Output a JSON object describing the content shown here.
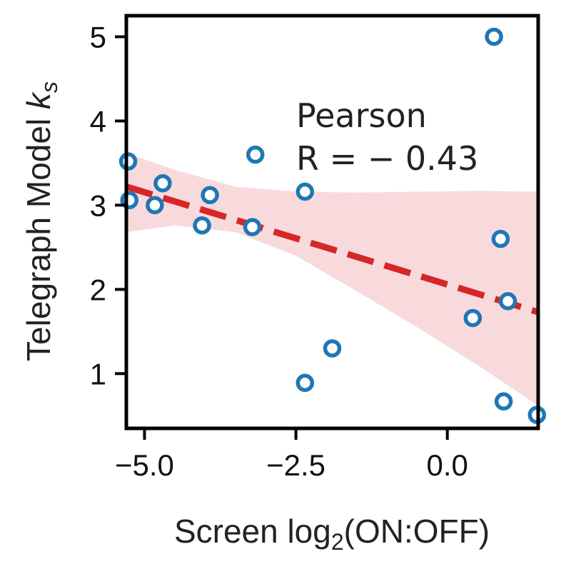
{
  "chart_data": {
    "type": "scatter",
    "xlabel": {
      "main": "Screen log",
      "sub": "2",
      "tail": "(ON:OFF)"
    },
    "ylabel": {
      "main": "Telegraph Model ",
      "italic": "k",
      "sub": "s"
    },
    "xlim": [
      -5.3,
      1.5
    ],
    "ylim": [
      0.35,
      5.25
    ],
    "xticks": [
      -5.0,
      -2.5,
      0.0
    ],
    "xtick_labels": [
      "−5.0",
      "−2.5",
      "0.0"
    ],
    "yticks": [
      1,
      2,
      3,
      4,
      5
    ],
    "ytick_labels": [
      "1",
      "2",
      "3",
      "4",
      "5"
    ],
    "grid": false,
    "points": [
      {
        "x": -5.27,
        "y": 3.52
      },
      {
        "x": -5.25,
        "y": 3.06
      },
      {
        "x": -4.83,
        "y": 3.0
      },
      {
        "x": -4.7,
        "y": 3.26
      },
      {
        "x": -4.05,
        "y": 2.76
      },
      {
        "x": -3.92,
        "y": 3.12
      },
      {
        "x": -3.22,
        "y": 2.74
      },
      {
        "x": -3.17,
        "y": 3.6
      },
      {
        "x": -2.35,
        "y": 3.16
      },
      {
        "x": -2.35,
        "y": 0.89
      },
      {
        "x": -1.9,
        "y": 1.3
      },
      {
        "x": 0.42,
        "y": 1.66
      },
      {
        "x": 0.77,
        "y": 5.0
      },
      {
        "x": 0.88,
        "y": 2.6
      },
      {
        "x": 0.93,
        "y": 0.67
      },
      {
        "x": 1.0,
        "y": 1.86
      },
      {
        "x": 1.48,
        "y": 0.51
      }
    ],
    "fit_line": {
      "x": [
        -5.3,
        1.5
      ],
      "y": [
        3.22,
        1.73
      ]
    },
    "confidence_band": {
      "x": [
        -5.3,
        -4.5,
        -3.5,
        -2.5,
        -1.5,
        -0.5,
        0.5,
        1.5
      ],
      "upper": [
        3.62,
        3.42,
        3.22,
        3.16,
        3.15,
        3.16,
        3.17,
        3.16
      ],
      "lower": [
        2.68,
        2.76,
        2.68,
        2.4,
        1.98,
        1.55,
        1.1,
        0.62
      ]
    },
    "annotation": {
      "line1": "Pearson",
      "line2": "R = − 0.43"
    },
    "colors": {
      "points": "#1f77b4",
      "fit_line": "#d62728",
      "band": "#f5c6cb",
      "axes": "#000000"
    }
  }
}
